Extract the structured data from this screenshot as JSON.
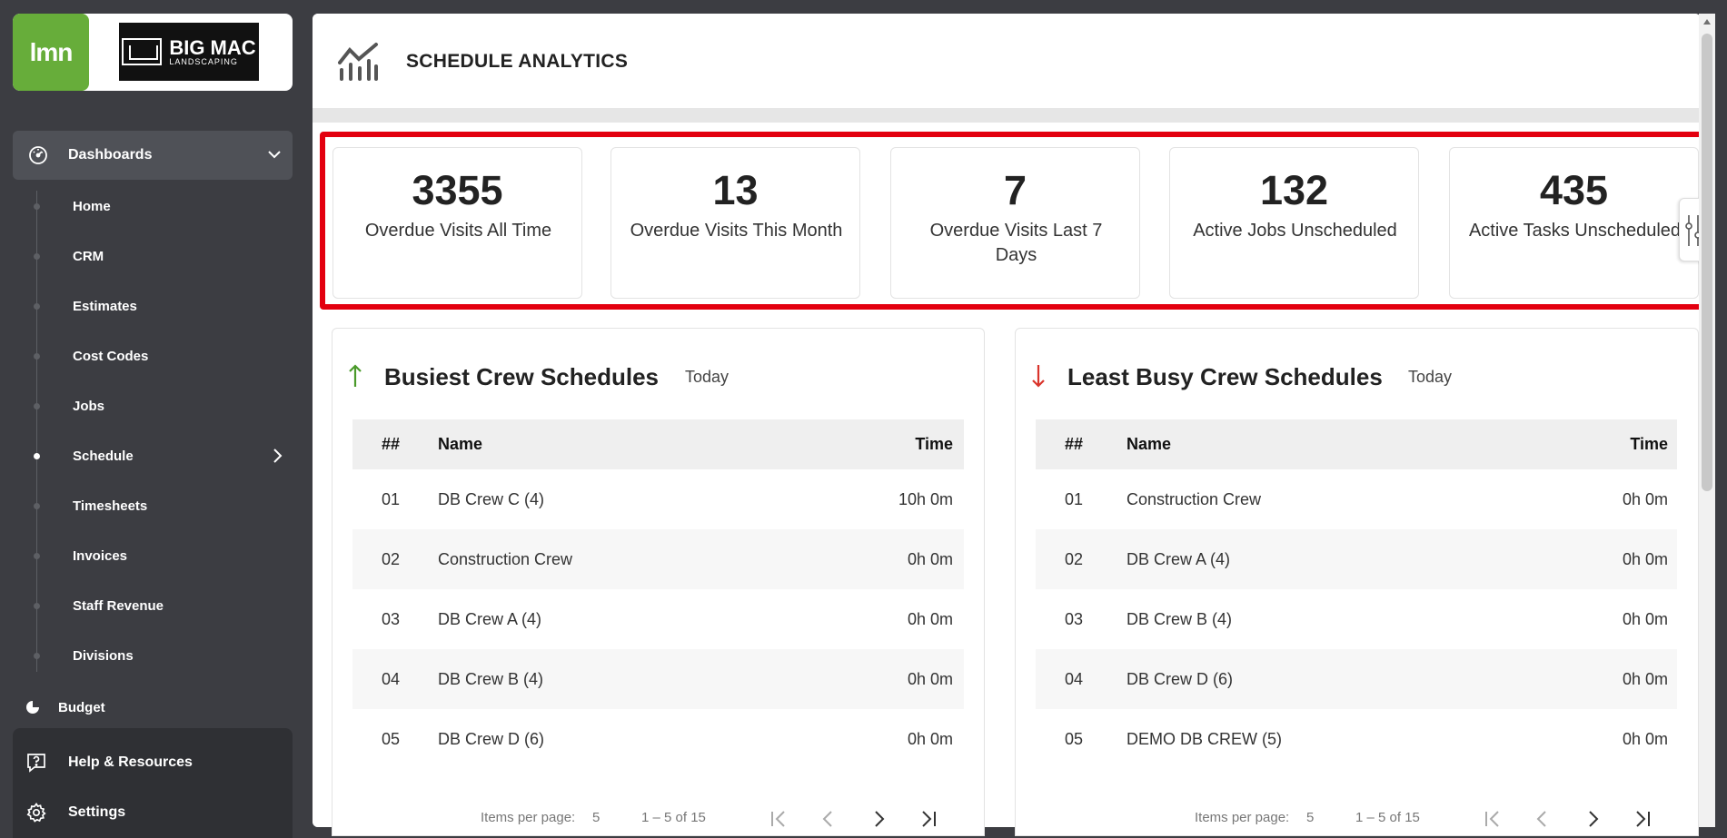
{
  "brand": {
    "lmn_logo": "lmn",
    "bigmac_line1": "BIG MAC",
    "bigmac_line2": "LANDSCAPING"
  },
  "sidebar": {
    "dashboards_label": "Dashboards",
    "items": [
      {
        "label": "Home"
      },
      {
        "label": "CRM"
      },
      {
        "label": "Estimates"
      },
      {
        "label": "Cost Codes"
      },
      {
        "label": "Jobs"
      },
      {
        "label": "Schedule",
        "active": true
      },
      {
        "label": "Timesheets"
      },
      {
        "label": "Invoices"
      },
      {
        "label": "Staff Revenue"
      },
      {
        "label": "Divisions"
      }
    ],
    "budget_label": "Budget",
    "help_label": "Help & Resources",
    "settings_label": "Settings"
  },
  "header": {
    "title": "SCHEDULE ANALYTICS"
  },
  "stats": [
    {
      "value": "3355",
      "caption": "Overdue Visits All Time"
    },
    {
      "value": "13",
      "caption": "Overdue Visits This Month"
    },
    {
      "value": "7",
      "caption": "Overdue Visits Last 7 Days"
    },
    {
      "value": "132",
      "caption": "Active Jobs Unscheduled"
    },
    {
      "value": "435",
      "caption": "Active Tasks Unscheduled"
    }
  ],
  "busiest": {
    "title": "Busiest Crew Schedules",
    "range": "Today",
    "columns": {
      "num": "##",
      "name": "Name",
      "time": "Time"
    },
    "rows": [
      {
        "num": "01",
        "name": "DB Crew C (4)",
        "time": "10h 0m"
      },
      {
        "num": "02",
        "name": "Construction Crew",
        "time": "0h 0m"
      },
      {
        "num": "03",
        "name": "DB Crew A (4)",
        "time": "0h 0m"
      },
      {
        "num": "04",
        "name": "DB Crew B (4)",
        "time": "0h 0m"
      },
      {
        "num": "05",
        "name": "DB Crew D (6)",
        "time": "0h 0m"
      }
    ],
    "items_per_page": "Items per page:",
    "page_size": "5",
    "range_label": "1 – 5 of 15"
  },
  "least_busy": {
    "title": "Least Busy Crew Schedules",
    "range": "Today",
    "columns": {
      "num": "##",
      "name": "Name",
      "time": "Time"
    },
    "rows": [
      {
        "num": "01",
        "name": "Construction Crew",
        "time": "0h 0m"
      },
      {
        "num": "02",
        "name": "DB Crew A (4)",
        "time": "0h 0m"
      },
      {
        "num": "03",
        "name": "DB Crew B (4)",
        "time": "0h 0m"
      },
      {
        "num": "04",
        "name": "DB Crew D (6)",
        "time": "0h 0m"
      },
      {
        "num": "05",
        "name": "DEMO DB CREW (5)",
        "time": "0h 0m"
      }
    ],
    "items_per_page": "Items per page:",
    "page_size": "5",
    "range_label": "1 – 5 of 15"
  },
  "colors": {
    "accent_green": "#67ad3a",
    "highlight_red": "#e3000f",
    "sidebar_bg": "#3c3d42",
    "down_red": "#d9342b"
  },
  "icons": {
    "dashboards": "gauge-icon",
    "analytics": "chart-trend-icon",
    "up": "arrow-up-icon",
    "down": "arrow-down-icon",
    "help": "help-icon",
    "settings": "gear-icon"
  }
}
